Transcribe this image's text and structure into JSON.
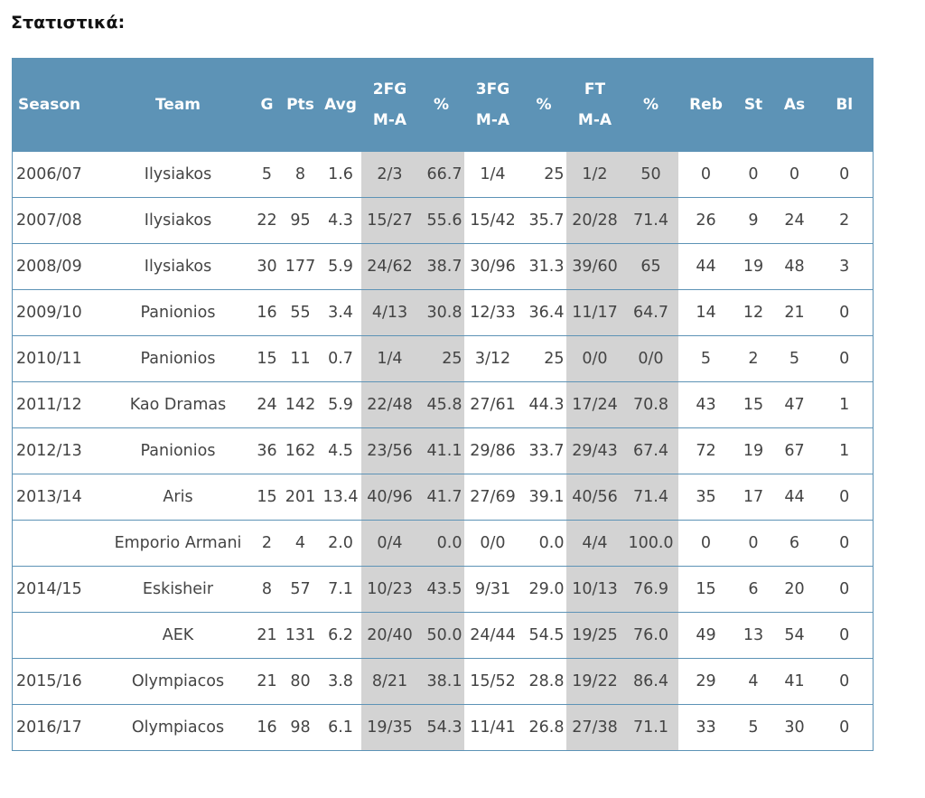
{
  "title": "Στατιστικά:",
  "headers": {
    "season": "Season",
    "team": "Team",
    "g": "G",
    "pts": "Pts",
    "avg": "Avg",
    "fg2_top": "2FG",
    "fg2_bottom": "M-A",
    "fg2_pct": "%",
    "fg3_top": "3FG",
    "fg3_bottom": "M-A",
    "fg3_pct": "%",
    "ft_top": "FT",
    "ft_bottom": "M-A",
    "ft_pct": "%",
    "reb": "Reb",
    "st": "St",
    "as": "As",
    "bl": "Bl"
  },
  "rows": [
    {
      "season": "2006/07",
      "team": "Ilysiakos",
      "g": "5",
      "pts": "8",
      "avg": "1.6",
      "fg2": "2/3",
      "fg2_pct": "66.7",
      "fg3": "1/4",
      "fg3_pct": "25",
      "ft": "1/2",
      "ft_pct": "50",
      "reb": "0",
      "st": "0",
      "as": "0",
      "bl": "0"
    },
    {
      "season": "2007/08",
      "team": "Ilysiakos",
      "g": "22",
      "pts": "95",
      "avg": "4.3",
      "fg2": "15/27",
      "fg2_pct": "55.6",
      "fg3": "15/42",
      "fg3_pct": "35.7",
      "ft": "20/28",
      "ft_pct": "71.4",
      "reb": "26",
      "st": "9",
      "as": "24",
      "bl": "2"
    },
    {
      "season": "2008/09",
      "team": "Ilysiakos",
      "g": "30",
      "pts": "177",
      "avg": "5.9",
      "fg2": "24/62",
      "fg2_pct": "38.7",
      "fg3": "30/96",
      "fg3_pct": "31.3",
      "ft": "39/60",
      "ft_pct": "65",
      "reb": "44",
      "st": "19",
      "as": "48",
      "bl": "3"
    },
    {
      "season": "2009/10",
      "team": "Panionios",
      "g": "16",
      "pts": "55",
      "avg": "3.4",
      "fg2": "4/13",
      "fg2_pct": "30.8",
      "fg3": "12/33",
      "fg3_pct": "36.4",
      "ft": "11/17",
      "ft_pct": "64.7",
      "reb": "14",
      "st": "12",
      "as": "21",
      "bl": "0"
    },
    {
      "season": "2010/11",
      "team": "Panionios",
      "g": "15",
      "pts": "11",
      "avg": "0.7",
      "fg2": "1/4",
      "fg2_pct": "25",
      "fg3": "3/12",
      "fg3_pct": "25",
      "ft": "0/0",
      "ft_pct": "0/0",
      "reb": "5",
      "st": "2",
      "as": "5",
      "bl": "0"
    },
    {
      "season": "2011/12",
      "team": "Kao Dramas",
      "g": "24",
      "pts": "142",
      "avg": "5.9",
      "fg2": "22/48",
      "fg2_pct": "45.8",
      "fg3": "27/61",
      "fg3_pct": "44.3",
      "ft": "17/24",
      "ft_pct": "70.8",
      "reb": "43",
      "st": "15",
      "as": "47",
      "bl": "1"
    },
    {
      "season": "2012/13",
      "team": "Panionios",
      "g": "36",
      "pts": "162",
      "avg": "4.5",
      "fg2": "23/56",
      "fg2_pct": "41.1",
      "fg3": "29/86",
      "fg3_pct": "33.7",
      "ft": "29/43",
      "ft_pct": "67.4",
      "reb": "72",
      "st": "19",
      "as": "67",
      "bl": "1"
    },
    {
      "season": "2013/14",
      "team": "Aris",
      "g": "15",
      "pts": "201",
      "avg": "13.4",
      "fg2": "40/96",
      "fg2_pct": "41.7",
      "fg3": "27/69",
      "fg3_pct": "39.1",
      "ft": "40/56",
      "ft_pct": "71.4",
      "reb": "35",
      "st": "17",
      "as": "44",
      "bl": "0"
    },
    {
      "season": "",
      "team": "Emporio Armani",
      "g": "2",
      "pts": "4",
      "avg": "2.0",
      "fg2": "0/4",
      "fg2_pct": "0.0",
      "fg3": "0/0",
      "fg3_pct": "0.0",
      "ft": "4/4",
      "ft_pct": "100.0",
      "reb": "0",
      "st": "0",
      "as": "6",
      "bl": "0"
    },
    {
      "season": "2014/15",
      "team": "Eskisheir",
      "g": "8",
      "pts": "57",
      "avg": "7.1",
      "fg2": "10/23",
      "fg2_pct": "43.5",
      "fg3": "9/31",
      "fg3_pct": "29.0",
      "ft": "10/13",
      "ft_pct": "76.9",
      "reb": "15",
      "st": "6",
      "as": "20",
      "bl": "0"
    },
    {
      "season": "",
      "team": "AEK",
      "g": "21",
      "pts": "131",
      "avg": "6.2",
      "fg2": "20/40",
      "fg2_pct": "50.0",
      "fg3": "24/44",
      "fg3_pct": "54.5",
      "ft": "19/25",
      "ft_pct": "76.0",
      "reb": "49",
      "st": "13",
      "as": "54",
      "bl": "0"
    },
    {
      "season": "2015/16",
      "team": "Olympiacos",
      "g": "21",
      "pts": "80",
      "avg": "3.8",
      "fg2": "8/21",
      "fg2_pct": "38.1",
      "fg3": "15/52",
      "fg3_pct": "28.8",
      "ft": "19/22",
      "ft_pct": "86.4",
      "reb": "29",
      "st": "4",
      "as": "41",
      "bl": "0"
    },
    {
      "season": "2016/17",
      "team": "Olympiacos",
      "g": "16",
      "pts": "98",
      "avg": "6.1",
      "fg2": "19/35",
      "fg2_pct": "54.3",
      "fg3": "11/41",
      "fg3_pct": "26.8",
      "ft": "27/38",
      "ft_pct": "71.1",
      "reb": "33",
      "st": "5",
      "as": "30",
      "bl": "0"
    }
  ]
}
